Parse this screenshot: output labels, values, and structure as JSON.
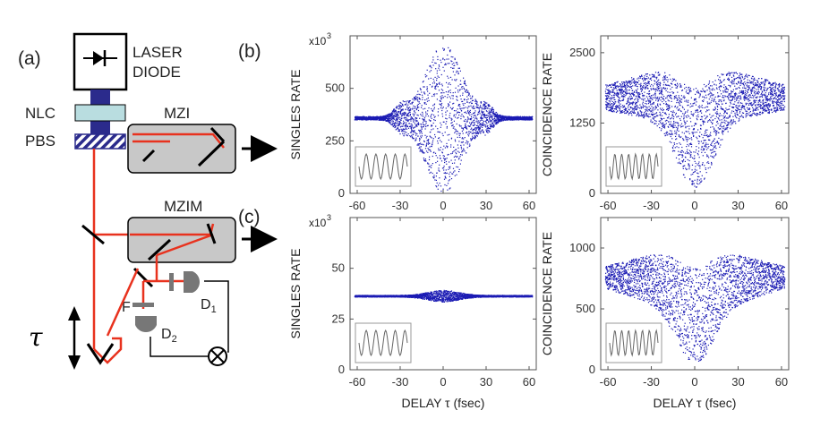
{
  "panel_labels": {
    "a": "(a)",
    "b": "(b)",
    "c": "(c)"
  },
  "schematic": {
    "laser_label_line1": "LASER",
    "laser_label_line2": "DIODE",
    "nlc": "NLC",
    "pbs": "PBS",
    "mzi": "MZI",
    "mzim": "MZIM",
    "filter": "F",
    "d1": "D",
    "d1_sub": "1",
    "d2": "D",
    "d2_sub": "2",
    "tau": "τ"
  },
  "colors": {
    "beam": "#e8321e",
    "points": "#1c1cb4",
    "box": "#c8c8c8",
    "nlc": "#b9dde0",
    "device": "#2b2b8c"
  },
  "chart_data": [
    {
      "id": "b-singles",
      "type": "scatter",
      "title": "",
      "ylabel": "SINGLES  RATE",
      "xlabel": "",
      "scale_label": "x10",
      "scale_exp": "3",
      "xlim": [
        -65,
        65
      ],
      "ylim": [
        0,
        750
      ],
      "xticks": [
        -60,
        -30,
        0,
        30,
        60
      ],
      "yticks": [
        0,
        250,
        500
      ],
      "envelope": {
        "baseline": 360,
        "peak_top": 700,
        "peak_bottom": 10,
        "peak_width_fs": 20,
        "side_lobe_center_fs": 30,
        "side_lobe_amp": 50
      },
      "inset": "sinusoidal fringes"
    },
    {
      "id": "b-coincidence",
      "type": "scatter",
      "ylabel": "COINCIDENCE  RATE",
      "xlabel": "",
      "xlim": [
        -65,
        65
      ],
      "ylim": [
        0,
        2800
      ],
      "xticks": [
        -60,
        -30,
        0,
        30,
        60
      ],
      "yticks": [
        0,
        1250,
        2500
      ],
      "envelope": {
        "mean_far": 1750,
        "spread_far": 280,
        "spread_near": 800,
        "mean_near": 1900,
        "dip_min": 100,
        "dip_width_fs": 12
      },
      "inset": "sinusoidal fringes"
    },
    {
      "id": "c-singles",
      "type": "scatter",
      "ylabel": "SINGLES  RATE",
      "xlabel": "DELAY  τ  (fsec)",
      "scale_label": "x10",
      "scale_exp": "3",
      "xlim": [
        -65,
        65
      ],
      "ylim": [
        0,
        75
      ],
      "xticks": [
        -60,
        -30,
        0,
        30,
        60
      ],
      "yticks": [
        0,
        25,
        50
      ],
      "envelope": {
        "baseline": 36.5,
        "peak_amp": 2.5,
        "peak_width_fs": 15
      },
      "inset": "sinusoidal fringes"
    },
    {
      "id": "c-coincidence",
      "type": "scatter",
      "ylabel": "COINCIDENCE  RATE",
      "xlabel": "DELAY  τ  (fsec)",
      "xlim": [
        -65,
        65
      ],
      "ylim": [
        0,
        1250
      ],
      "xticks": [
        -60,
        -30,
        0,
        30,
        60
      ],
      "yticks": [
        0,
        500,
        1000
      ],
      "envelope": {
        "mean_far": 780,
        "spread_far": 110,
        "spread_near": 400,
        "mean_near": 800,
        "dip_min": 60,
        "dip_width_fs": 12
      },
      "inset": "sinusoidal fringes"
    }
  ]
}
